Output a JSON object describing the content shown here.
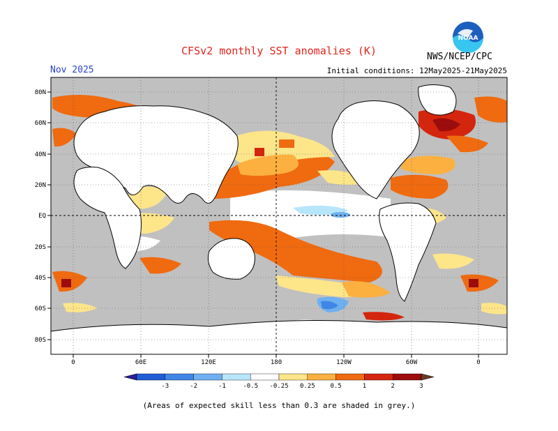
{
  "header": {
    "title": "CFSv2 monthly SST anomalies (K)",
    "agency": "NWS/NCEP/CPC",
    "logo_text": "NOAA",
    "valid_month": "Nov 2025",
    "initial_conditions": "Initial conditions: 12May2025-21May2025"
  },
  "map": {
    "lat_labels": [
      "80N",
      "60N",
      "40N",
      "20N",
      "EQ",
      "20S",
      "40S",
      "60S",
      "80S"
    ],
    "lon_labels": [
      "0",
      "60E",
      "120E",
      "180",
      "120W",
      "60W",
      "0"
    ],
    "colors": {
      "ocean_low_skill": "#c0c0c0",
      "land": "#ffffff",
      "neutral": "#ffffff",
      "coastline": "#000000"
    }
  },
  "colorbar": {
    "tick_labels": [
      "-3",
      "-2",
      "-1",
      "-0.5",
      "-0.25",
      "0.25",
      "0.5",
      "1",
      "2",
      "3"
    ],
    "colors": [
      "#2a1f9a",
      "#1e5dd6",
      "#3f86e6",
      "#6fb0f0",
      "#b7e6fb",
      "#ffffff",
      "#fde58a",
      "#fbb040",
      "#f06a10",
      "#d4260e",
      "#9c0c0c",
      "#6b3a22"
    ]
  },
  "footnote": "(Areas of expected skill less than 0.3 are shaded in grey.)"
}
